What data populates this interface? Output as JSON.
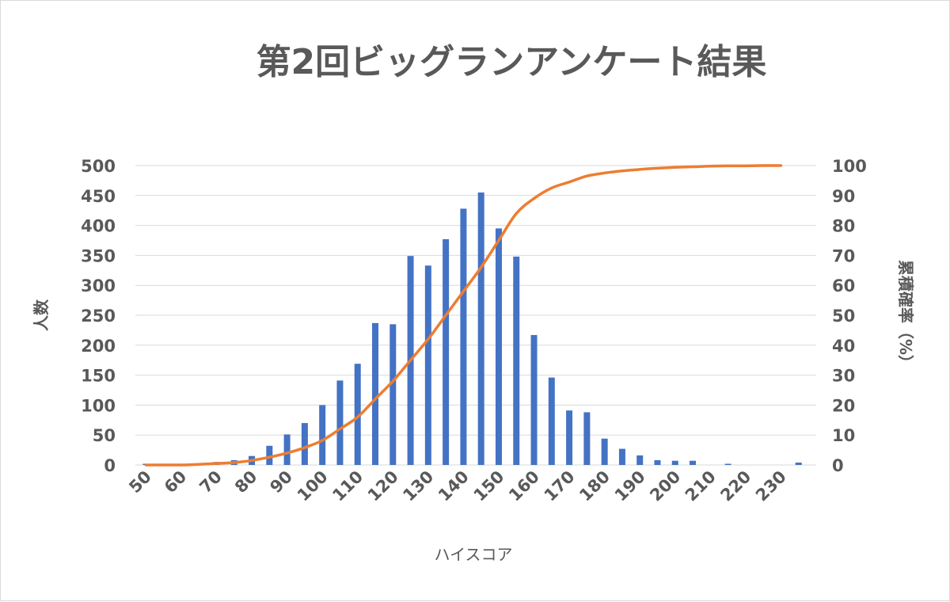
{
  "chart_data": {
    "type": "bar+line",
    "title": "第2回ビッグランアンケート結果",
    "xlabel": "ハイスコア",
    "ylabel_left": "人数",
    "ylabel_right": "累積確率（%）",
    "ylim_left": [
      0,
      500
    ],
    "ylim_right": [
      0,
      100
    ],
    "yticks_left": [
      "0",
      "50",
      "100",
      "150",
      "200",
      "250",
      "300",
      "350",
      "400",
      "450",
      "500"
    ],
    "yticks_right": [
      "0",
      "10",
      "20",
      "30",
      "40",
      "50",
      "60",
      "70",
      "80",
      "90",
      "100"
    ],
    "xtick_labels": [
      "50",
      "60",
      "70",
      "80",
      "90",
      "100",
      "110",
      "120",
      "130",
      "140",
      "150",
      "160",
      "170",
      "180",
      "190",
      "200",
      "210",
      "220",
      "230"
    ],
    "grid": true,
    "colors": {
      "bars": "#4472c4",
      "line": "#ed7d31",
      "grid": "#d9d9d9",
      "text": "#595959"
    },
    "series": [
      {
        "type": "bar",
        "axis": "left",
        "x": [
          50,
          55,
          60,
          65,
          70,
          75,
          80,
          85,
          90,
          95,
          100,
          105,
          110,
          115,
          120,
          125,
          130,
          135,
          140,
          145,
          150,
          155,
          160,
          165,
          170,
          175,
          180,
          185,
          190,
          195,
          200,
          205,
          210,
          215,
          220,
          225,
          230,
          235
        ],
        "values": [
          2,
          0,
          0,
          0,
          5,
          8,
          15,
          32,
          51,
          70,
          100,
          141,
          169,
          237,
          235,
          349,
          333,
          377,
          428,
          455,
          395,
          348,
          217,
          146,
          91,
          88,
          44,
          27,
          16,
          8,
          7,
          7,
          0,
          2,
          0,
          0,
          0,
          4
        ]
      },
      {
        "type": "line",
        "axis": "right",
        "x": [
          50,
          55,
          60,
          65,
          70,
          75,
          80,
          85,
          90,
          95,
          100,
          105,
          110,
          115,
          120,
          125,
          130,
          135,
          140,
          145,
          150,
          155,
          160,
          165,
          170,
          175,
          180,
          185,
          190,
          195,
          200,
          205,
          210,
          215,
          220,
          225,
          230
        ],
        "values": [
          0,
          0,
          0,
          0.2,
          0.5,
          0.8,
          1.5,
          2.6,
          4.0,
          5.8,
          8.2,
          12,
          16,
          22,
          28,
          35,
          42,
          50,
          58,
          66,
          75,
          84,
          89,
          92.5,
          94.5,
          96.5,
          97.5,
          98.2,
          98.7,
          99.1,
          99.4,
          99.6,
          99.8,
          99.9,
          99.9,
          100,
          100
        ]
      }
    ]
  }
}
